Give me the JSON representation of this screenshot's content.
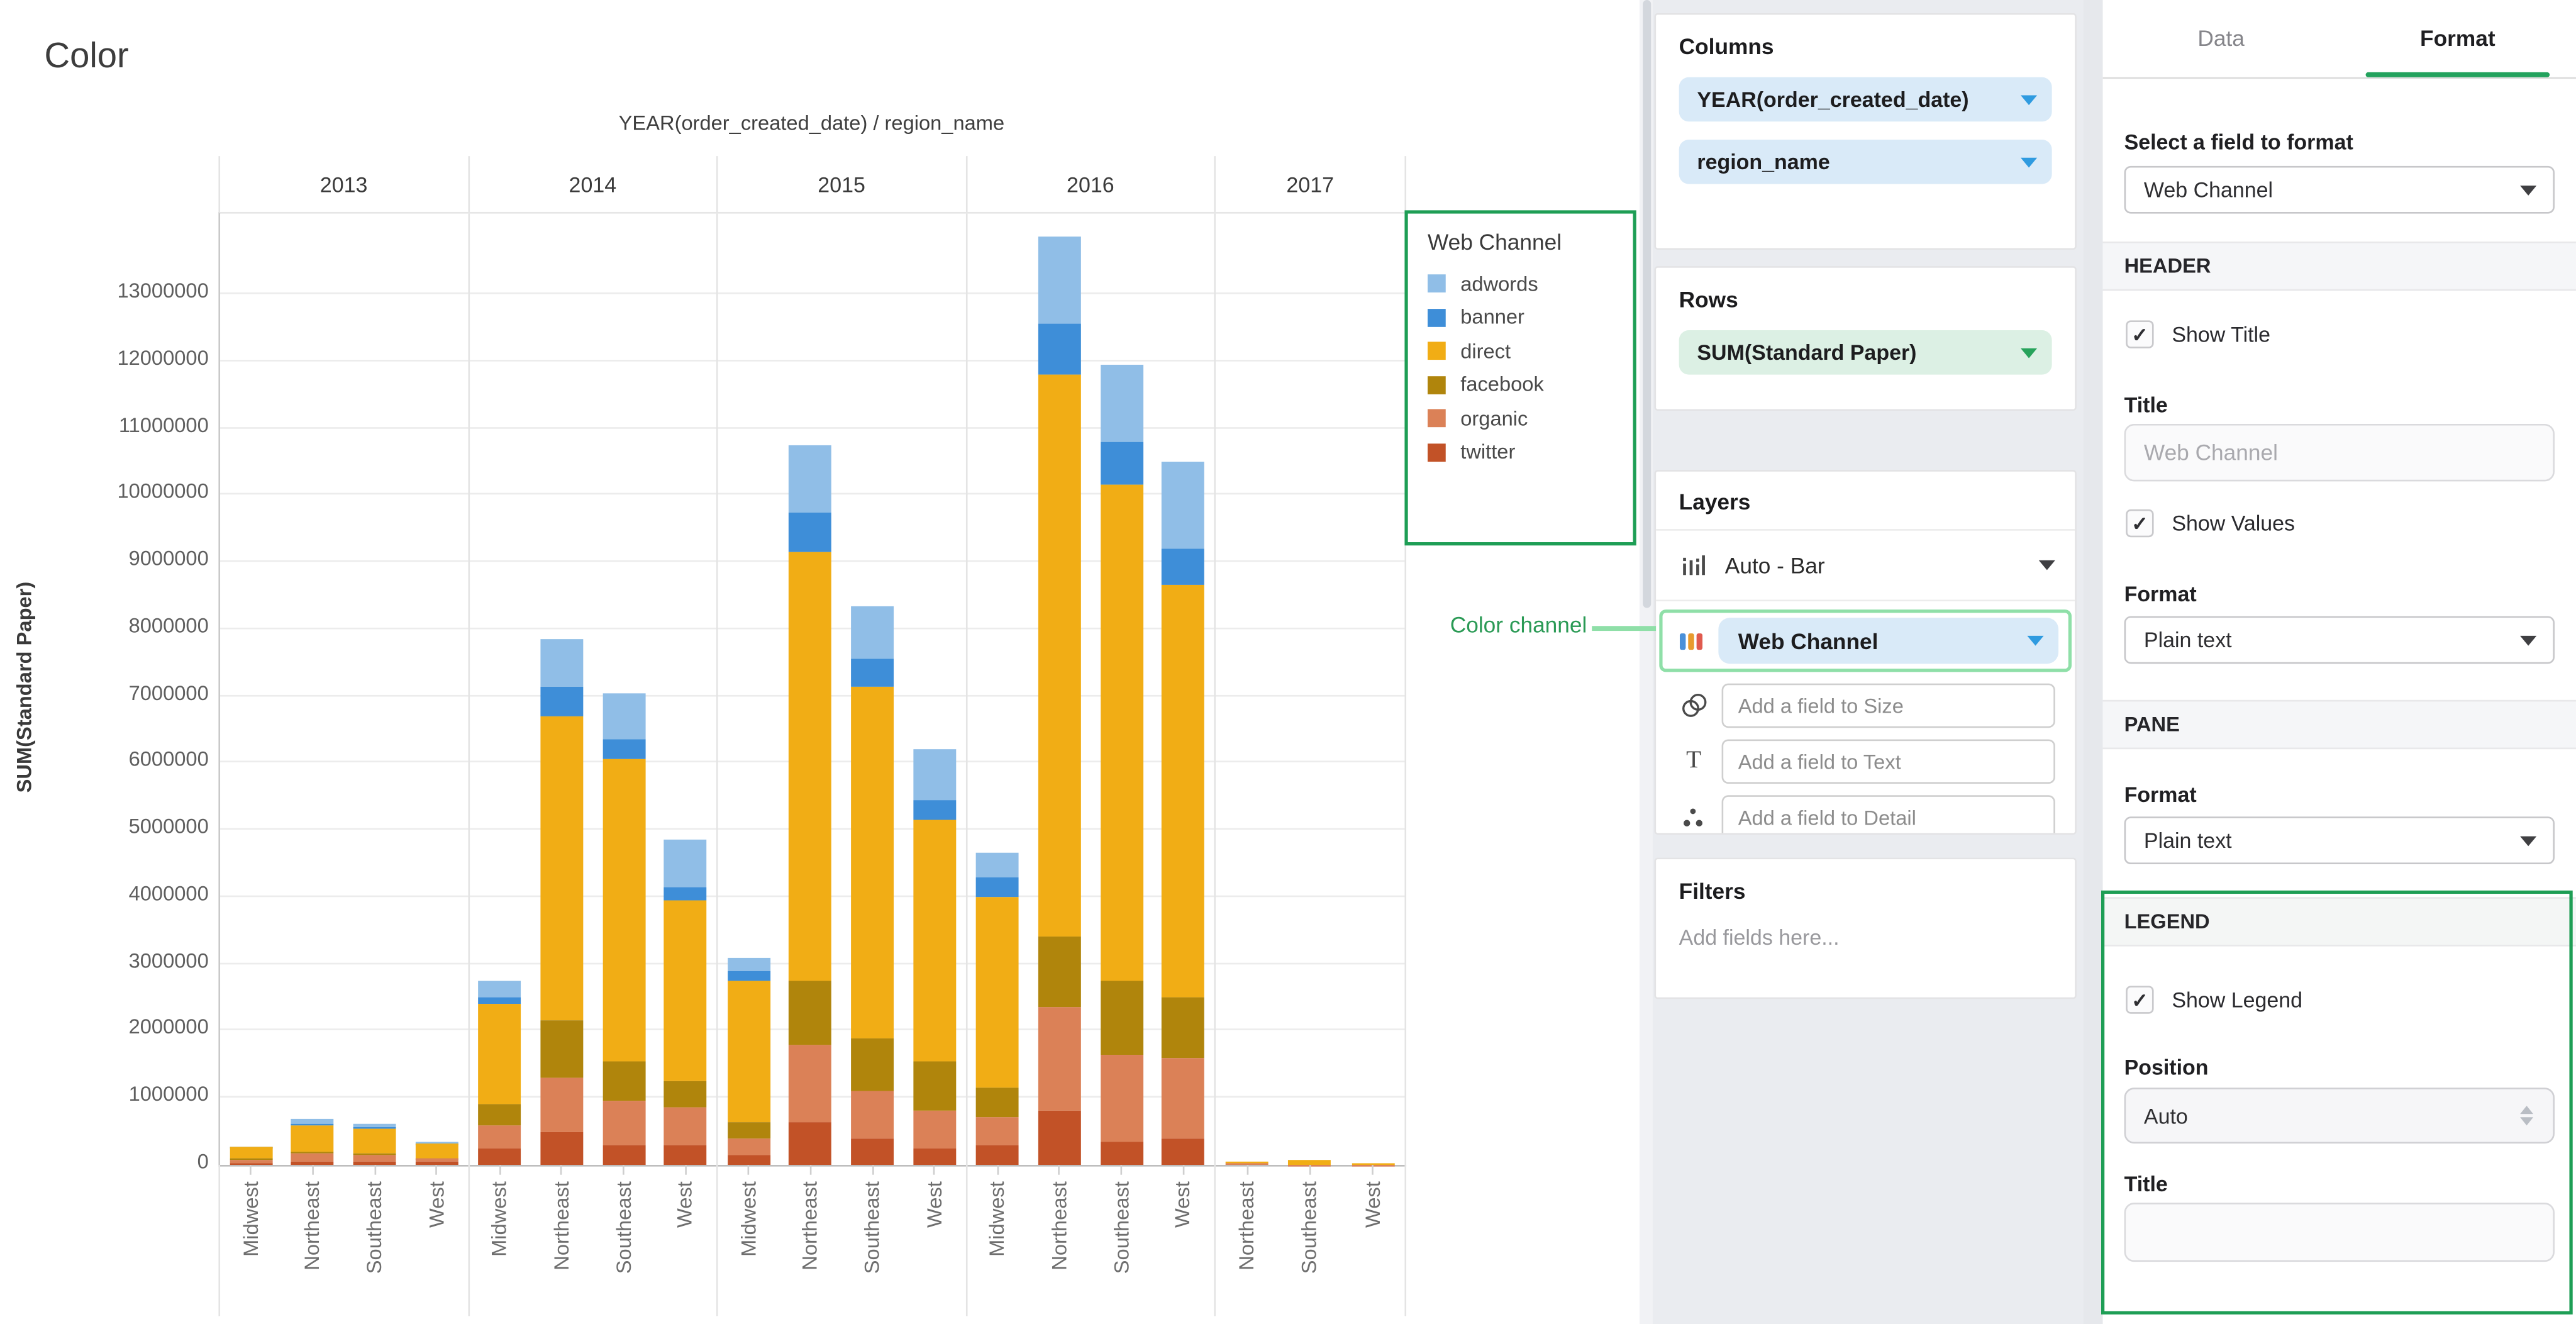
{
  "chart": {
    "title": "Color",
    "column_header": "YEAR(order_created_date) / region_name",
    "y_axis_title": "SUM(Standard Paper)",
    "legend_title": "Web Channel"
  },
  "chart_data": {
    "type": "bar",
    "stacked": true,
    "title": "Color",
    "x_group_header": "YEAR(order_created_date) / region_name",
    "ylabel": "SUM(Standard Paper)",
    "ylim": [
      0,
      14200000
    ],
    "ytick_interval": 1000000,
    "ytick_max": 13000000,
    "grid": true,
    "legend_position": "top-right",
    "legend_title": "Web Channel",
    "legend_order": [
      "adwords",
      "banner",
      "direct",
      "facebook",
      "organic",
      "twitter"
    ],
    "series_order_bottom_to_top": [
      "twitter",
      "organic",
      "facebook",
      "direct",
      "banner",
      "adwords"
    ],
    "series_colors": {
      "adwords": "#90BEE7",
      "banner": "#3E8ED8",
      "direct": "#F1AD15",
      "facebook": "#B0850C",
      "organic": "#DB8157",
      "twitter": "#C25227"
    },
    "groups": [
      {
        "label": "2013",
        "bars": [
          {
            "region": "Midwest",
            "values": {
              "adwords": 10000,
              "banner": 5000,
              "direct": 170000,
              "facebook": 10000,
              "organic": 55000,
              "twitter": 30000
            }
          },
          {
            "region": "Northeast",
            "values": {
              "adwords": 90000,
              "banner": 25000,
              "direct": 385000,
              "facebook": 25000,
              "organic": 110000,
              "twitter": 60000
            }
          },
          {
            "region": "Southeast",
            "values": {
              "adwords": 40000,
              "banner": 30000,
              "direct": 380000,
              "facebook": 25000,
              "organic": 95000,
              "twitter": 45000
            }
          },
          {
            "region": "West",
            "values": {
              "adwords": 20000,
              "banner": 10000,
              "direct": 200000,
              "facebook": 15000,
              "organic": 55000,
              "twitter": 40000
            }
          }
        ]
      },
      {
        "label": "2014",
        "bars": [
          {
            "region": "Midwest",
            "values": {
              "adwords": 250000,
              "banner": 100000,
              "direct": 1500000,
              "facebook": 300000,
              "organic": 350000,
              "twitter": 250000
            }
          },
          {
            "region": "Northeast",
            "values": {
              "adwords": 700000,
              "banner": 450000,
              "direct": 4550000,
              "facebook": 850000,
              "organic": 800000,
              "twitter": 500000
            }
          },
          {
            "region": "Southeast",
            "values": {
              "adwords": 700000,
              "banner": 300000,
              "direct": 4500000,
              "facebook": 600000,
              "organic": 650000,
              "twitter": 300000
            }
          },
          {
            "region": "West",
            "values": {
              "adwords": 700000,
              "banner": 200000,
              "direct": 2700000,
              "facebook": 400000,
              "organic": 550000,
              "twitter": 300000
            }
          }
        ]
      },
      {
        "label": "2015",
        "bars": [
          {
            "region": "Midwest",
            "values": {
              "adwords": 200000,
              "banner": 150000,
              "direct": 2100000,
              "facebook": 250000,
              "organic": 250000,
              "twitter": 150000
            }
          },
          {
            "region": "Northeast",
            "values": {
              "adwords": 1000000,
              "banner": 600000,
              "direct": 6400000,
              "facebook": 950000,
              "organic": 1150000,
              "twitter": 650000
            }
          },
          {
            "region": "Southeast",
            "values": {
              "adwords": 800000,
              "banner": 400000,
              "direct": 5250000,
              "facebook": 800000,
              "organic": 700000,
              "twitter": 400000
            }
          },
          {
            "region": "West",
            "values": {
              "adwords": 750000,
              "banner": 300000,
              "direct": 3600000,
              "facebook": 750000,
              "organic": 550000,
              "twitter": 250000
            }
          }
        ]
      },
      {
        "label": "2016",
        "bars": [
          {
            "region": "Midwest",
            "values": {
              "adwords": 350000,
              "banner": 300000,
              "direct": 2850000,
              "facebook": 450000,
              "organic": 400000,
              "twitter": 300000
            }
          },
          {
            "region": "Northeast",
            "values": {
              "adwords": 1300000,
              "banner": 750000,
              "direct": 8400000,
              "facebook": 1050000,
              "organic": 1550000,
              "twitter": 800000
            }
          },
          {
            "region": "Southeast",
            "values": {
              "adwords": 1150000,
              "banner": 650000,
              "direct": 7400000,
              "facebook": 1100000,
              "organic": 1300000,
              "twitter": 350000
            }
          },
          {
            "region": "West",
            "values": {
              "adwords": 1300000,
              "banner": 550000,
              "direct": 6150000,
              "facebook": 900000,
              "organic": 1200000,
              "twitter": 400000
            }
          }
        ]
      },
      {
        "label": "2017",
        "bars": [
          {
            "region": "Northeast",
            "values": {
              "adwords": 0,
              "banner": 0,
              "direct": 25000,
              "facebook": 0,
              "organic": 15000,
              "twitter": 0
            }
          },
          {
            "region": "Southeast",
            "values": {
              "adwords": 0,
              "banner": 0,
              "direct": 60000,
              "facebook": 0,
              "organic": 10000,
              "twitter": 0
            }
          },
          {
            "region": "West",
            "values": {
              "adwords": 0,
              "banner": 0,
              "direct": 15000,
              "facebook": 0,
              "organic": 5000,
              "twitter": 0
            }
          }
        ]
      }
    ]
  },
  "panels": {
    "columns": {
      "title": "Columns",
      "pills": [
        "YEAR(order_created_date)",
        "region_name"
      ]
    },
    "rows": {
      "title": "Rows",
      "pills": [
        "SUM(Standard Paper)"
      ]
    },
    "layers": {
      "title": "Layers",
      "chart_type": "Auto - Bar",
      "color_field": "Web Channel",
      "size_placeholder": "Add a field to Size",
      "text_placeholder": "Add a field to Text",
      "detail_placeholder": "Add a field to Detail"
    },
    "filters": {
      "title": "Filters",
      "placeholder": "Add fields here..."
    }
  },
  "annotation": {
    "label": "Color channel"
  },
  "format_panel": {
    "tabs": {
      "data": "Data",
      "format": "Format"
    },
    "select_field_label": "Select a field to format",
    "field_value": "Web Channel",
    "header_section": "HEADER",
    "show_title_label": "Show Title",
    "show_title_checked": "✓",
    "title_label": "Title",
    "title_placeholder": "Web Channel",
    "show_values_label": "Show Values",
    "show_values_checked": "✓",
    "format_label": "Format",
    "format_value": "Plain text",
    "pane_section": "PANE",
    "pane_format_label": "Format",
    "pane_format_value": "Plain text",
    "legend_section": "LEGEND",
    "show_legend_label": "Show Legend",
    "show_legend_checked": "✓",
    "position_label": "Position",
    "position_value": "Auto",
    "legend_title_label": "Title",
    "legend_title_value": ""
  },
  "colors": {
    "annotation_green": "#1E9E55",
    "annotation_green_light": "#8FDFA8",
    "tab_accent_green": "#23A25D",
    "pill_blue_bg": "#D9EAF8",
    "pill_green_bg": "#DCF0E4"
  }
}
